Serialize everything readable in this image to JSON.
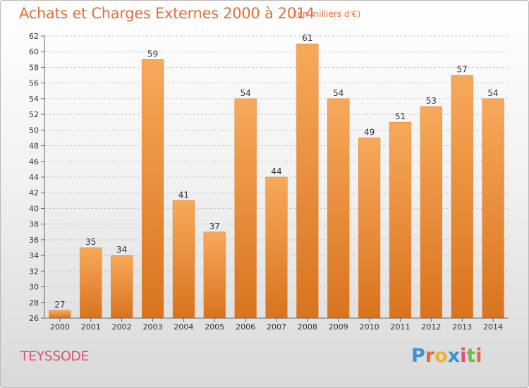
{
  "title": "Achats et Charges Externes 2000 à 2014",
  "subtitle": "(en milliers d'€)",
  "commune": "TEYSSODE",
  "logo": {
    "letters": [
      "P",
      "r",
      "o",
      "x",
      "i",
      "t",
      "i"
    ],
    "colors": [
      "#3d8fd6",
      "#e8692f",
      "#f2b133",
      "#3d8fd6",
      "#e24c8a",
      "#6fbf3f",
      "#e8692f"
    ]
  },
  "colors": {
    "bar_top": "#f7a95a",
    "bar_bottom": "#d9731e",
    "bar_edge": "#e07f2b",
    "title": "#e0703a"
  },
  "chart_data": {
    "type": "bar",
    "categories": [
      "2000",
      "2001",
      "2002",
      "2003",
      "2004",
      "2005",
      "2006",
      "2007",
      "2008",
      "2009",
      "2010",
      "2011",
      "2012",
      "2013",
      "2014"
    ],
    "values": [
      27,
      35,
      34,
      59,
      41,
      37,
      54,
      44,
      61,
      54,
      49,
      51,
      53,
      57,
      54
    ],
    "ylim": [
      26,
      62
    ],
    "yticks": [
      26,
      28,
      30,
      32,
      34,
      36,
      38,
      40,
      42,
      44,
      46,
      48,
      50,
      52,
      54,
      56,
      58,
      60,
      62
    ],
    "grid": "horizontal-dashed",
    "data_labels": true
  }
}
